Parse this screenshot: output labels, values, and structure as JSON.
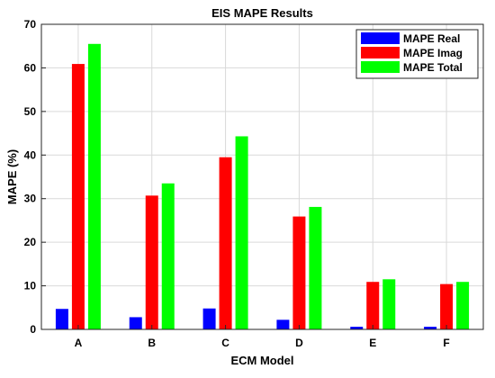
{
  "chart_data": {
    "type": "bar",
    "title": "EIS MAPE Results",
    "xlabel": "ECM Model",
    "ylabel": "MAPE (%)",
    "categories": [
      "A",
      "B",
      "C",
      "D",
      "E",
      "F"
    ],
    "ylim": [
      0,
      70
    ],
    "yticks": [
      0,
      10,
      20,
      30,
      40,
      50,
      60,
      70
    ],
    "grid": true,
    "legend_position": "top-right",
    "series": [
      {
        "name": "MAPE Real",
        "color": "#0000ff",
        "values": [
          4.7,
          2.8,
          4.8,
          2.2,
          0.6,
          0.6
        ]
      },
      {
        "name": "MAPE Imag",
        "color": "#ff0000",
        "values": [
          60.9,
          30.7,
          39.5,
          25.9,
          10.9,
          10.4
        ]
      },
      {
        "name": "MAPE Total",
        "color": "#00ff00",
        "values": [
          65.5,
          33.5,
          44.3,
          28.1,
          11.5,
          10.9
        ]
      }
    ]
  }
}
